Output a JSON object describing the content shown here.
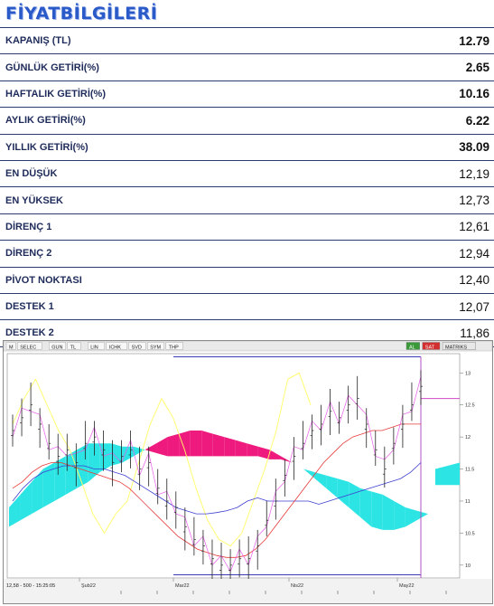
{
  "title": "FİYATBİLGİLERİ",
  "rows": [
    {
      "label": "KAPANIŞ (TL)",
      "value": "12.79",
      "bold": true
    },
    {
      "label": "GÜNLÜK GETİRİ(%)",
      "value": "2.65",
      "bold": true
    },
    {
      "label": "HAFTALIK GETİRİ(%)",
      "value": "10.16",
      "bold": true
    },
    {
      "label": "AYLIK GETİRİ(%)",
      "value": "6.22",
      "bold": true
    },
    {
      "label": "YILLIK  GETİRİ(%)",
      "value": "38.09",
      "bold": true
    },
    {
      "label": "EN DÜŞÜK",
      "value": "12,19",
      "bold": false
    },
    {
      "label": "EN YÜKSEK",
      "value": "12,73",
      "bold": false
    },
    {
      "label": "DİRENÇ 1",
      "value": "12,61",
      "bold": false
    },
    {
      "label": "DİRENÇ 2",
      "value": "12,94",
      "bold": false
    },
    {
      "label": "PİVOT NOKTASI",
      "value": "12,40",
      "bold": false
    },
    {
      "label": "DESTEK 1",
      "value": "12,07",
      "bold": false
    },
    {
      "label": "DESTEK 2",
      "value": "11,86",
      "bold": false
    }
  ],
  "chart_toolbar": {
    "items": [
      "M",
      "SELEC",
      "GUN",
      "TL",
      "LIN",
      "ICHK",
      "SVD",
      "SYM",
      "THP"
    ],
    "right_items": [
      "AL",
      "SAT",
      "MATRIKS"
    ]
  },
  "chart_data": {
    "type": "line",
    "x_tick_labels": [
      "Şub22",
      "Mar22",
      "Nis22",
      "May22"
    ],
    "y_tick_labels": [
      "13",
      "12.5",
      "12",
      "11.5",
      "11",
      "10.5",
      "10"
    ],
    "ylim": [
      9.8,
      13.3
    ],
    "status_text": "12,58 - 500 - 15:25:05",
    "resistance_level": 13.25,
    "current_level": 12.6,
    "support_level": 9.85,
    "colors": {
      "cloud_up": "#2de4e4",
      "cloud_down": "#ee1a7d",
      "tenkan": "#e83a3a",
      "kijun": "#3d3fd0",
      "chikou": "#ffff66",
      "span_line": "#e85be8"
    },
    "series": [
      {
        "values": [
          12.1,
          12.3,
          12.5,
          12.2,
          11.9,
          11.7,
          11.8,
          11.6,
          11.9,
          12.0,
          11.8,
          11.6,
          11.7,
          11.8,
          11.5,
          11.6,
          11.2,
          11.0,
          10.9,
          10.6,
          10.4,
          10.3,
          10.1,
          10.0,
          10.0,
          10.1,
          10.1,
          10.3,
          10.7,
          11.0,
          11.4,
          11.7,
          11.9,
          12.1,
          12.2,
          12.4,
          12.3,
          12.5,
          12.6,
          12.2,
          11.8,
          11.5,
          11.9,
          12.2,
          12.5,
          12.79
        ]
      },
      {
        "values": [
          11.2,
          11.3,
          11.45,
          11.55,
          11.6,
          11.6,
          11.55,
          11.5,
          11.45,
          11.4,
          11.35,
          11.3,
          11.2,
          11.05,
          10.9,
          10.75,
          10.6,
          10.45,
          10.35,
          10.25,
          10.2,
          10.15,
          10.12,
          10.12,
          10.15,
          10.25,
          10.4,
          10.6,
          10.8,
          11.0,
          11.2,
          11.4,
          11.6,
          11.75,
          11.9,
          12.0,
          12.05,
          12.1,
          12.1,
          12.15,
          12.2,
          12.2,
          12.2
        ]
      },
      {
        "values": [
          11.0,
          11.2,
          11.35,
          11.45,
          11.5,
          11.55,
          11.55,
          11.55,
          11.5,
          11.5,
          11.45,
          11.4,
          11.3,
          11.2,
          11.1,
          11.0,
          10.9,
          10.85,
          10.8,
          10.8,
          10.82,
          10.85,
          10.9,
          11.0,
          11.05,
          11.0,
          11.0,
          11.0,
          11.0,
          11.0,
          10.95,
          11.0,
          11.05,
          11.1,
          11.15,
          11.2,
          11.25,
          11.3,
          11.35,
          11.45,
          11.6
        ]
      },
      {
        "values": [
          12.2,
          12.6,
          12.9,
          12.5,
          12.1,
          11.8,
          11.3,
          10.8,
          10.5,
          10.8,
          11.0,
          11.6,
          12.2,
          12.6,
          12.3,
          11.8,
          11.2,
          10.7,
          10.4,
          10.3,
          10.5,
          11.0,
          11.5,
          12.1,
          12.9,
          13.0,
          12.5
        ]
      },
      {
        "values": [
          10.9,
          11.1,
          11.3,
          11.5,
          11.6,
          11.7,
          11.8,
          11.9,
          11.9,
          11.9,
          11.85,
          11.85,
          11.8,
          11.75,
          11.7,
          11.7,
          11.7,
          11.7,
          11.7,
          11.7,
          11.7,
          11.7,
          11.7,
          11.65,
          11.65,
          11.6,
          11.5,
          11.45,
          11.4,
          11.35,
          11.3,
          11.2,
          11.15,
          11.1,
          11.0,
          10.9,
          10.85,
          10.8
        ]
      },
      {
        "values": [
          10.6,
          10.7,
          10.8,
          10.9,
          11.0,
          11.1,
          11.2,
          11.3,
          11.45,
          11.55,
          11.6,
          11.7,
          11.8,
          11.9,
          12.0,
          12.05,
          12.1,
          12.1,
          12.05,
          12.0,
          11.95,
          11.9,
          11.85,
          11.8,
          11.7,
          11.6,
          11.5,
          11.35,
          11.2,
          11.05,
          10.9,
          10.75,
          10.6,
          10.55,
          10.55,
          10.6,
          10.7,
          10.8
        ]
      }
    ]
  }
}
